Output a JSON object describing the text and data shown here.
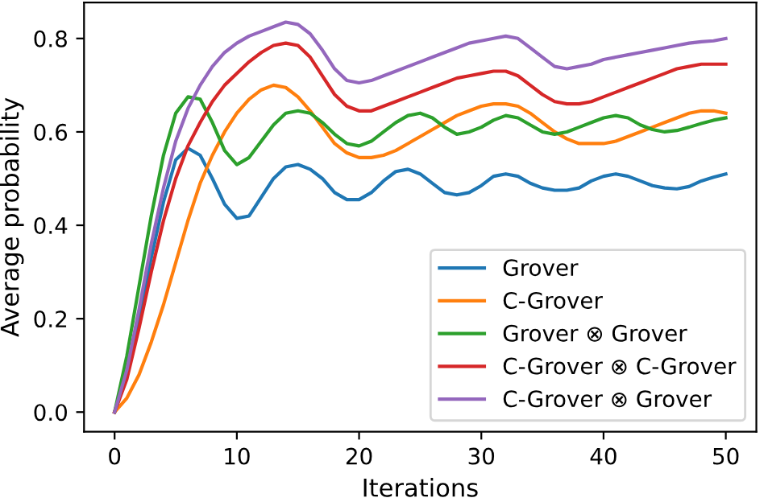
{
  "chart_data": {
    "type": "line",
    "xlabel": "Iterations",
    "ylabel": "Average probability",
    "xlim": [
      -2.5,
      52.5
    ],
    "ylim": [
      -0.042,
      0.877
    ],
    "xticks": [
      0,
      10,
      20,
      30,
      40,
      50
    ],
    "yticks": [
      {
        "value": 0,
        "label": "0.0"
      },
      0.2,
      0.4,
      0.6,
      0.8
    ],
    "grid": false,
    "legend": "bottom right",
    "marker": "none",
    "line_style": "solid",
    "x": [
      0,
      1,
      2,
      3,
      4,
      5,
      6,
      7,
      8,
      9,
      10,
      11,
      12,
      13,
      14,
      15,
      16,
      17,
      18,
      19,
      20,
      21,
      22,
      23,
      24,
      25,
      26,
      27,
      28,
      29,
      30,
      31,
      32,
      33,
      34,
      35,
      36,
      37,
      38,
      39,
      40,
      41,
      42,
      43,
      44,
      45,
      46,
      47,
      48,
      49,
      50
    ],
    "series": [
      {
        "name": "Grover",
        "color": "#1f77b4",
        "values": [
          0,
          0.08,
          0.2,
          0.33,
          0.45,
          0.54,
          0.565,
          0.55,
          0.5,
          0.445,
          0.415,
          0.42,
          0.46,
          0.5,
          0.525,
          0.53,
          0.52,
          0.5,
          0.47,
          0.455,
          0.455,
          0.47,
          0.495,
          0.515,
          0.52,
          0.51,
          0.49,
          0.47,
          0.465,
          0.47,
          0.485,
          0.505,
          0.51,
          0.505,
          0.49,
          0.48,
          0.475,
          0.475,
          0.48,
          0.495,
          0.505,
          0.51,
          0.505,
          0.495,
          0.485,
          0.48,
          0.478,
          0.483,
          0.495,
          0.503,
          0.51
        ]
      },
      {
        "name": "C-Grover",
        "color": "#ff7f0e",
        "values": [
          0,
          0.03,
          0.08,
          0.15,
          0.23,
          0.32,
          0.41,
          0.49,
          0.55,
          0.6,
          0.64,
          0.67,
          0.69,
          0.7,
          0.695,
          0.675,
          0.645,
          0.61,
          0.575,
          0.555,
          0.545,
          0.545,
          0.55,
          0.56,
          0.575,
          0.59,
          0.605,
          0.62,
          0.635,
          0.645,
          0.655,
          0.66,
          0.66,
          0.655,
          0.64,
          0.62,
          0.6,
          0.585,
          0.575,
          0.575,
          0.575,
          0.58,
          0.59,
          0.6,
          0.61,
          0.62,
          0.63,
          0.64,
          0.645,
          0.645,
          0.64
        ]
      },
      {
        "name": "Grover ⊗ Grover",
        "color": "#2ca02c",
        "values": [
          0,
          0.12,
          0.27,
          0.42,
          0.55,
          0.64,
          0.675,
          0.67,
          0.62,
          0.56,
          0.53,
          0.545,
          0.58,
          0.615,
          0.64,
          0.645,
          0.64,
          0.62,
          0.595,
          0.575,
          0.57,
          0.58,
          0.6,
          0.62,
          0.635,
          0.64,
          0.63,
          0.61,
          0.595,
          0.6,
          0.61,
          0.625,
          0.635,
          0.63,
          0.615,
          0.6,
          0.595,
          0.6,
          0.61,
          0.62,
          0.63,
          0.635,
          0.63,
          0.615,
          0.605,
          0.6,
          0.603,
          0.61,
          0.618,
          0.625,
          0.63
        ]
      },
      {
        "name": "C-Grover ⊗ C-Grover",
        "color": "#d62728",
        "values": [
          0,
          0.07,
          0.18,
          0.3,
          0.41,
          0.5,
          0.57,
          0.62,
          0.665,
          0.7,
          0.725,
          0.75,
          0.77,
          0.785,
          0.79,
          0.785,
          0.76,
          0.72,
          0.68,
          0.655,
          0.645,
          0.645,
          0.655,
          0.665,
          0.675,
          0.685,
          0.695,
          0.705,
          0.715,
          0.72,
          0.725,
          0.73,
          0.73,
          0.72,
          0.7,
          0.68,
          0.665,
          0.66,
          0.66,
          0.665,
          0.675,
          0.685,
          0.695,
          0.705,
          0.715,
          0.725,
          0.735,
          0.74,
          0.745,
          0.745,
          0.745
        ]
      },
      {
        "name": "C-Grover ⊗ Grover",
        "color": "#9467bd",
        "values": [
          0,
          0.09,
          0.22,
          0.36,
          0.48,
          0.58,
          0.65,
          0.7,
          0.74,
          0.77,
          0.79,
          0.805,
          0.815,
          0.825,
          0.835,
          0.83,
          0.81,
          0.775,
          0.735,
          0.71,
          0.705,
          0.71,
          0.72,
          0.73,
          0.74,
          0.75,
          0.76,
          0.77,
          0.78,
          0.79,
          0.795,
          0.8,
          0.805,
          0.8,
          0.78,
          0.76,
          0.74,
          0.735,
          0.74,
          0.745,
          0.755,
          0.76,
          0.765,
          0.77,
          0.775,
          0.78,
          0.785,
          0.79,
          0.793,
          0.795,
          0.8
        ]
      }
    ]
  }
}
